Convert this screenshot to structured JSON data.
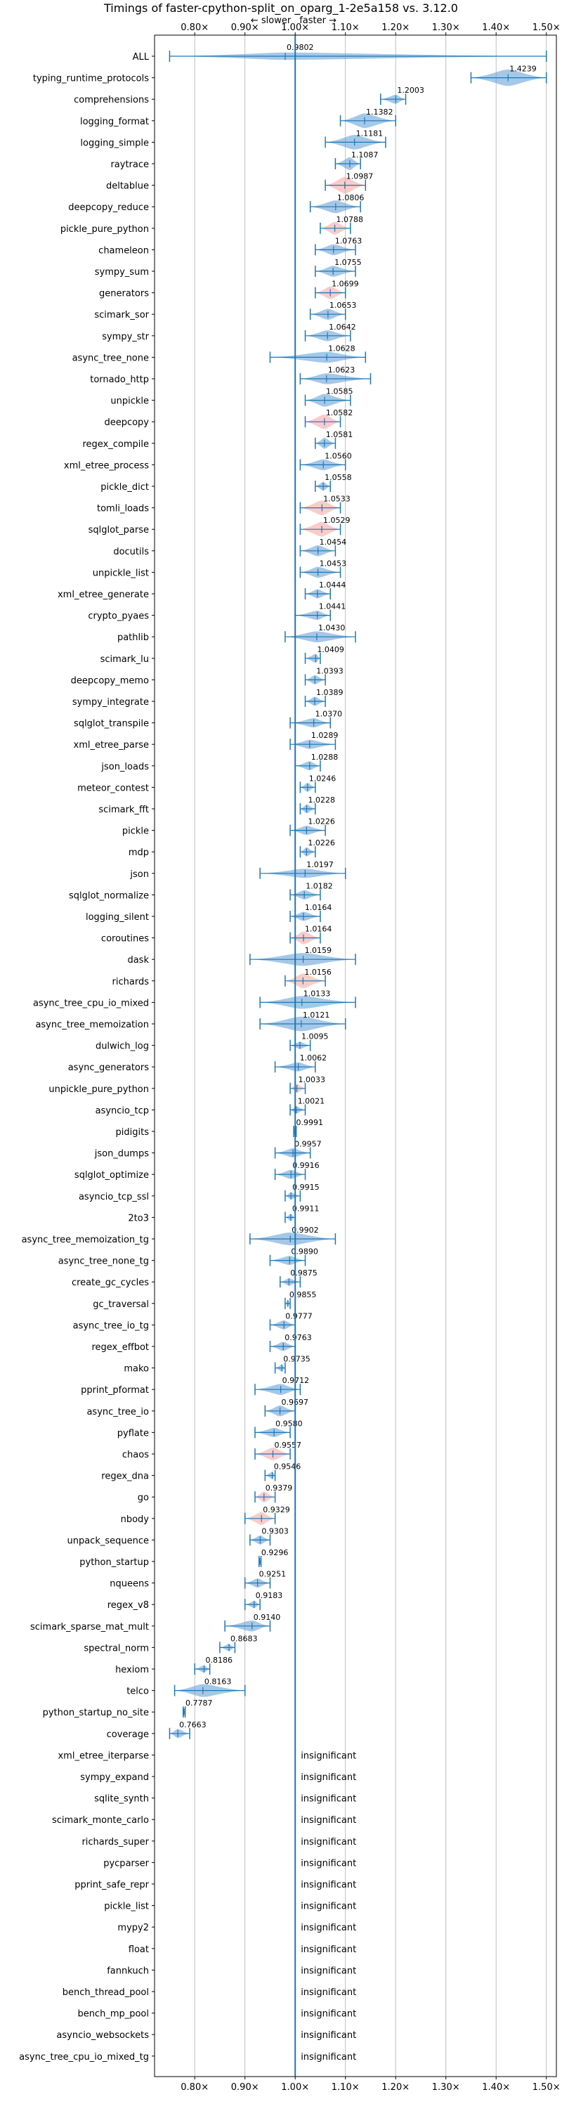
{
  "chart_data": {
    "type": "violin",
    "title": "Timings of faster-cpython-split_on_oparg_1-2e5a158 vs. 3.12.0",
    "direction_labels": {
      "slower": "← slower",
      "faster": "faster →"
    },
    "xlim": [
      0.72,
      1.52
    ],
    "xticks": [
      0.8,
      0.9,
      1.0,
      1.1,
      1.2,
      1.3,
      1.4,
      1.5
    ],
    "xtick_labels": [
      "0.80×",
      "0.90×",
      "1.00×",
      "1.10×",
      "1.20×",
      "1.30×",
      "1.40×",
      "1.50×"
    ],
    "grid": true,
    "reference_line": 1.0,
    "colors": {
      "faster": "#5b9bd5",
      "slower": "#f4a3a3",
      "line": "#1f77b4",
      "text": "#000000",
      "grid": "#b0b0b0"
    },
    "insignificant_label": "insignificant",
    "benchmarks": [
      {
        "name": "ALL",
        "value": 0.9802,
        "spread": [
          0.75,
          1.5
        ],
        "width": 0.4,
        "mode": "faster"
      },
      {
        "name": "typing_runtime_protocols",
        "value": 1.4239,
        "spread": [
          1.35,
          1.5
        ],
        "width": 0.9,
        "mode": "faster"
      },
      {
        "name": "comprehensions",
        "value": 1.2003,
        "spread": [
          1.17,
          1.22
        ],
        "width": 0.5,
        "mode": "faster"
      },
      {
        "name": "logging_format",
        "value": 1.1382,
        "spread": [
          1.09,
          1.2
        ],
        "width": 0.8,
        "mode": "faster"
      },
      {
        "name": "logging_simple",
        "value": 1.1181,
        "spread": [
          1.06,
          1.18
        ],
        "width": 0.8,
        "mode": "faster"
      },
      {
        "name": "raytrace",
        "value": 1.1087,
        "spread": [
          1.08,
          1.13
        ],
        "width": 0.7,
        "mode": "faster"
      },
      {
        "name": "deltablue",
        "value": 1.0987,
        "spread": [
          1.06,
          1.14
        ],
        "width": 0.9,
        "mode": "slower"
      },
      {
        "name": "deepcopy_reduce",
        "value": 1.0806,
        "spread": [
          1.03,
          1.13
        ],
        "width": 0.7,
        "mode": "faster"
      },
      {
        "name": "pickle_pure_python",
        "value": 1.0788,
        "spread": [
          1.05,
          1.11
        ],
        "width": 0.7,
        "mode": "slower"
      },
      {
        "name": "chameleon",
        "value": 1.0763,
        "spread": [
          1.04,
          1.12
        ],
        "width": 0.6,
        "mode": "faster"
      },
      {
        "name": "sympy_sum",
        "value": 1.0755,
        "spread": [
          1.04,
          1.12
        ],
        "width": 0.6,
        "mode": "faster"
      },
      {
        "name": "generators",
        "value": 1.0699,
        "spread": [
          1.04,
          1.1
        ],
        "width": 0.7,
        "mode": "slower"
      },
      {
        "name": "scimark_sor",
        "value": 1.0653,
        "spread": [
          1.03,
          1.1
        ],
        "width": 0.6,
        "mode": "faster"
      },
      {
        "name": "sympy_str",
        "value": 1.0642,
        "spread": [
          1.02,
          1.11
        ],
        "width": 0.6,
        "mode": "faster"
      },
      {
        "name": "async_tree_none",
        "value": 1.0628,
        "spread": [
          0.95,
          1.14
        ],
        "width": 0.6,
        "mode": "faster"
      },
      {
        "name": "tornado_http",
        "value": 1.0623,
        "spread": [
          1.01,
          1.15
        ],
        "width": 0.6,
        "mode": "faster"
      },
      {
        "name": "unpickle",
        "value": 1.0585,
        "spread": [
          1.02,
          1.11
        ],
        "width": 0.7,
        "mode": "faster"
      },
      {
        "name": "deepcopy",
        "value": 1.0582,
        "spread": [
          1.02,
          1.09
        ],
        "width": 0.8,
        "mode": "slower"
      },
      {
        "name": "regex_compile",
        "value": 1.0581,
        "spread": [
          1.04,
          1.08
        ],
        "width": 0.6,
        "mode": "faster"
      },
      {
        "name": "xml_etree_process",
        "value": 1.056,
        "spread": [
          1.01,
          1.1
        ],
        "width": 0.6,
        "mode": "faster"
      },
      {
        "name": "pickle_dict",
        "value": 1.0558,
        "spread": [
          1.04,
          1.07
        ],
        "width": 0.5,
        "mode": "faster"
      },
      {
        "name": "tomli_loads",
        "value": 1.0533,
        "spread": [
          1.01,
          1.09
        ],
        "width": 0.8,
        "mode": "slower"
      },
      {
        "name": "sqlglot_parse",
        "value": 1.0529,
        "spread": [
          1.01,
          1.09
        ],
        "width": 0.8,
        "mode": "slower"
      },
      {
        "name": "docutils",
        "value": 1.0454,
        "spread": [
          1.01,
          1.08
        ],
        "width": 0.6,
        "mode": "faster"
      },
      {
        "name": "unpickle_list",
        "value": 1.0453,
        "spread": [
          1.01,
          1.09
        ],
        "width": 0.6,
        "mode": "faster"
      },
      {
        "name": "xml_etree_generate",
        "value": 1.0444,
        "spread": [
          1.02,
          1.07
        ],
        "width": 0.5,
        "mode": "faster"
      },
      {
        "name": "crypto_pyaes",
        "value": 1.0441,
        "spread": [
          1.0,
          1.07
        ],
        "width": 0.5,
        "mode": "faster"
      },
      {
        "name": "pathlib",
        "value": 1.043,
        "spread": [
          0.98,
          1.12
        ],
        "width": 0.6,
        "mode": "faster"
      },
      {
        "name": "scimark_lu",
        "value": 1.0409,
        "spread": [
          1.02,
          1.05
        ],
        "width": 0.5,
        "mode": "faster"
      },
      {
        "name": "deepcopy_memo",
        "value": 1.0393,
        "spread": [
          1.02,
          1.06
        ],
        "width": 0.5,
        "mode": "faster"
      },
      {
        "name": "sympy_integrate",
        "value": 1.0389,
        "spread": [
          1.02,
          1.06
        ],
        "width": 0.5,
        "mode": "faster"
      },
      {
        "name": "sqlglot_transpile",
        "value": 1.037,
        "spread": [
          0.99,
          1.07
        ],
        "width": 0.5,
        "mode": "faster"
      },
      {
        "name": "xml_etree_parse",
        "value": 1.0289,
        "spread": [
          0.99,
          1.08
        ],
        "width": 0.5,
        "mode": "faster"
      },
      {
        "name": "json_loads",
        "value": 1.0288,
        "spread": [
          1.0,
          1.05
        ],
        "width": 0.5,
        "mode": "faster"
      },
      {
        "name": "meteor_contest",
        "value": 1.0246,
        "spread": [
          1.01,
          1.04
        ],
        "width": 0.5,
        "mode": "faster"
      },
      {
        "name": "scimark_fft",
        "value": 1.0228,
        "spread": [
          1.01,
          1.04
        ],
        "width": 0.5,
        "mode": "faster"
      },
      {
        "name": "pickle",
        "value": 1.0226,
        "spread": [
          0.99,
          1.06
        ],
        "width": 0.5,
        "mode": "faster"
      },
      {
        "name": "mdp",
        "value": 1.0226,
        "spread": [
          1.01,
          1.04
        ],
        "width": 0.5,
        "mode": "faster"
      },
      {
        "name": "json",
        "value": 1.0197,
        "spread": [
          0.93,
          1.1
        ],
        "width": 0.5,
        "mode": "faster"
      },
      {
        "name": "sqlglot_normalize",
        "value": 1.0182,
        "spread": [
          0.99,
          1.05
        ],
        "width": 0.5,
        "mode": "faster"
      },
      {
        "name": "logging_silent",
        "value": 1.0164,
        "spread": [
          0.99,
          1.05
        ],
        "width": 0.5,
        "mode": "faster"
      },
      {
        "name": "coroutines",
        "value": 1.0164,
        "spread": [
          0.99,
          1.05
        ],
        "width": 0.7,
        "mode": "slower"
      },
      {
        "name": "dask",
        "value": 1.0159,
        "spread": [
          0.91,
          1.12
        ],
        "width": 0.7,
        "mode": "faster"
      },
      {
        "name": "richards",
        "value": 1.0156,
        "spread": [
          0.98,
          1.06
        ],
        "width": 0.8,
        "mode": "slower"
      },
      {
        "name": "async_tree_cpu_io_mixed",
        "value": 1.0133,
        "spread": [
          0.93,
          1.12
        ],
        "width": 0.7,
        "mode": "faster"
      },
      {
        "name": "async_tree_memoization",
        "value": 1.0121,
        "spread": [
          0.93,
          1.1
        ],
        "width": 0.8,
        "mode": "faster"
      },
      {
        "name": "dulwich_log",
        "value": 1.0095,
        "spread": [
          0.99,
          1.03
        ],
        "width": 0.4,
        "mode": "faster"
      },
      {
        "name": "async_generators",
        "value": 1.0062,
        "spread": [
          0.96,
          1.04
        ],
        "width": 0.5,
        "mode": "faster"
      },
      {
        "name": "unpickle_pure_python",
        "value": 1.0033,
        "spread": [
          0.99,
          1.02
        ],
        "width": 0.5,
        "mode": "slower"
      },
      {
        "name": "asyncio_tcp",
        "value": 1.0021,
        "spread": [
          0.99,
          1.02
        ],
        "width": 0.4,
        "mode": "faster"
      },
      {
        "name": "pidigits",
        "value": 0.9991,
        "spread": [
          0.997,
          1.002
        ],
        "width": 0.3,
        "mode": "faster"
      },
      {
        "name": "json_dumps",
        "value": 0.9957,
        "spread": [
          0.96,
          1.03
        ],
        "width": 0.5,
        "mode": "faster"
      },
      {
        "name": "sqlglot_optimize",
        "value": 0.9916,
        "spread": [
          0.96,
          1.02
        ],
        "width": 0.5,
        "mode": "faster"
      },
      {
        "name": "asyncio_tcp_ssl",
        "value": 0.9915,
        "spread": [
          0.98,
          1.01
        ],
        "width": 0.4,
        "mode": "faster"
      },
      {
        "name": "2to3",
        "value": 0.9911,
        "spread": [
          0.98,
          1.0
        ],
        "width": 0.4,
        "mode": "faster"
      },
      {
        "name": "async_tree_memoization_tg",
        "value": 0.9902,
        "spread": [
          0.91,
          1.08
        ],
        "width": 0.7,
        "mode": "faster"
      },
      {
        "name": "async_tree_none_tg",
        "value": 0.989,
        "spread": [
          0.95,
          1.02
        ],
        "width": 0.5,
        "mode": "faster"
      },
      {
        "name": "create_gc_cycles",
        "value": 0.9875,
        "spread": [
          0.97,
          1.01
        ],
        "width": 0.4,
        "mode": "faster"
      },
      {
        "name": "gc_traversal",
        "value": 0.9855,
        "spread": [
          0.98,
          0.99
        ],
        "width": 0.4,
        "mode": "faster"
      },
      {
        "name": "async_tree_io_tg",
        "value": 0.9777,
        "spread": [
          0.95,
          1.0
        ],
        "width": 0.5,
        "mode": "faster"
      },
      {
        "name": "regex_effbot",
        "value": 0.9763,
        "spread": [
          0.95,
          1.0
        ],
        "width": 0.5,
        "mode": "faster"
      },
      {
        "name": "mako",
        "value": 0.9735,
        "spread": [
          0.96,
          0.98
        ],
        "width": 0.4,
        "mode": "faster"
      },
      {
        "name": "pprint_pformat",
        "value": 0.9712,
        "spread": [
          0.92,
          1.01
        ],
        "width": 0.6,
        "mode": "faster"
      },
      {
        "name": "async_tree_io",
        "value": 0.9697,
        "spread": [
          0.94,
          1.0
        ],
        "width": 0.6,
        "mode": "faster"
      },
      {
        "name": "pyflate",
        "value": 0.958,
        "spread": [
          0.92,
          0.99
        ],
        "width": 0.5,
        "mode": "faster"
      },
      {
        "name": "chaos",
        "value": 0.9557,
        "spread": [
          0.92,
          0.99
        ],
        "width": 0.7,
        "mode": "slower"
      },
      {
        "name": "regex_dna",
        "value": 0.9546,
        "spread": [
          0.94,
          0.96
        ],
        "width": 0.4,
        "mode": "faster"
      },
      {
        "name": "go",
        "value": 0.9379,
        "spread": [
          0.92,
          0.96
        ],
        "width": 0.6,
        "mode": "slower"
      },
      {
        "name": "nbody",
        "value": 0.9329,
        "spread": [
          0.9,
          0.96
        ],
        "width": 0.7,
        "mode": "slower"
      },
      {
        "name": "unpack_sequence",
        "value": 0.9303,
        "spread": [
          0.91,
          0.95
        ],
        "width": 0.5,
        "mode": "faster"
      },
      {
        "name": "python_startup",
        "value": 0.9296,
        "spread": [
          0.928,
          0.932
        ],
        "width": 0.3,
        "mode": "faster"
      },
      {
        "name": "nqueens",
        "value": 0.9251,
        "spread": [
          0.9,
          0.95
        ],
        "width": 0.5,
        "mode": "faster"
      },
      {
        "name": "regex_v8",
        "value": 0.9183,
        "spread": [
          0.9,
          0.93
        ],
        "width": 0.4,
        "mode": "faster"
      },
      {
        "name": "scimark_sparse_mat_mult",
        "value": 0.914,
        "spread": [
          0.86,
          0.95
        ],
        "width": 0.6,
        "mode": "faster"
      },
      {
        "name": "spectral_norm",
        "value": 0.8683,
        "spread": [
          0.85,
          0.88
        ],
        "width": 0.4,
        "mode": "faster"
      },
      {
        "name": "hexiom",
        "value": 0.8186,
        "spread": [
          0.8,
          0.83
        ],
        "width": 0.4,
        "mode": "faster"
      },
      {
        "name": "telco",
        "value": 0.8163,
        "spread": [
          0.76,
          0.9
        ],
        "width": 0.7,
        "mode": "faster"
      },
      {
        "name": "python_startup_no_site",
        "value": 0.7787,
        "spread": [
          0.777,
          0.781
        ],
        "width": 0.3,
        "mode": "faster"
      },
      {
        "name": "coverage",
        "value": 0.7663,
        "spread": [
          0.75,
          0.79
        ],
        "width": 0.5,
        "mode": "faster"
      },
      {
        "name": "xml_etree_iterparse",
        "value": null,
        "mode": "insignificant"
      },
      {
        "name": "sympy_expand",
        "value": null,
        "mode": "insignificant"
      },
      {
        "name": "sqlite_synth",
        "value": null,
        "mode": "insignificant"
      },
      {
        "name": "scimark_monte_carlo",
        "value": null,
        "mode": "insignificant"
      },
      {
        "name": "richards_super",
        "value": null,
        "mode": "insignificant"
      },
      {
        "name": "pycparser",
        "value": null,
        "mode": "insignificant"
      },
      {
        "name": "pprint_safe_repr",
        "value": null,
        "mode": "insignificant"
      },
      {
        "name": "pickle_list",
        "value": null,
        "mode": "insignificant"
      },
      {
        "name": "mypy2",
        "value": null,
        "mode": "insignificant"
      },
      {
        "name": "float",
        "value": null,
        "mode": "insignificant"
      },
      {
        "name": "fannkuch",
        "value": null,
        "mode": "insignificant"
      },
      {
        "name": "bench_thread_pool",
        "value": null,
        "mode": "insignificant"
      },
      {
        "name": "bench_mp_pool",
        "value": null,
        "mode": "insignificant"
      },
      {
        "name": "asyncio_websockets",
        "value": null,
        "mode": "insignificant"
      },
      {
        "name": "async_tree_cpu_io_mixed_tg",
        "value": null,
        "mode": "insignificant"
      }
    ]
  }
}
